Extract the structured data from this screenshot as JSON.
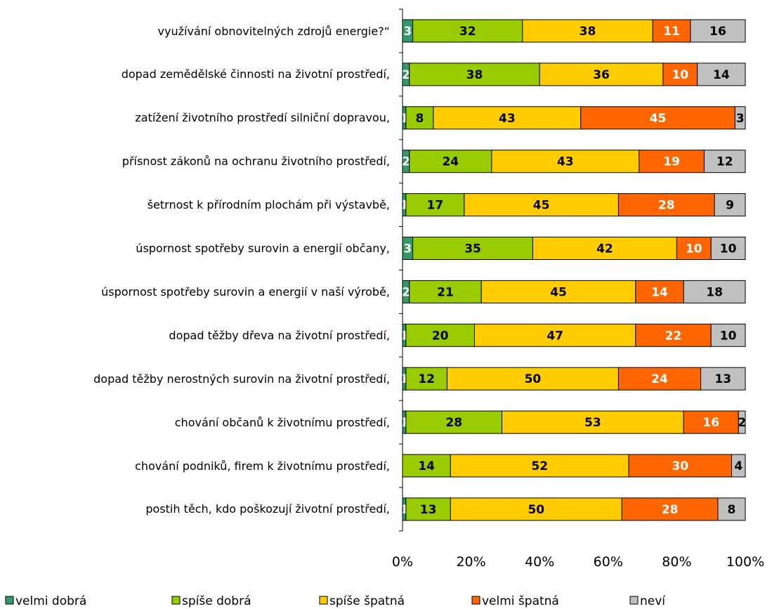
{
  "chart_data": {
    "type": "stacked-bar-horizontal",
    "categories": [
      "využívání obnovitelných zdrojů energie?“",
      "dopad zemědělské činnosti na životní prostředí,",
      "zatížení životního prostředí silniční dopravou,",
      "přísnost zákonů na ochranu životního prostředí,",
      "šetrnost k přírodním plochám při výstavbě,",
      "úspornost spotřeby surovin a energií občany,",
      "úspornost spotřeby surovin a energií v naší výrobě,",
      "dopad těžby dřeva na životní prostředí,",
      "dopad těžby nerostných surovin na životní prostředí,",
      "chování občanů k životnímu prostředí,",
      "chování podniků, firem k životnímu prostředí,",
      "postih těch, kdo poškozují životní prostředí,"
    ],
    "series": [
      {
        "name": "velmi dobrá",
        "color": "#339966",
        "label_color": "#ffffff",
        "values": [
          3,
          2,
          1,
          2,
          1,
          3,
          2,
          1,
          1,
          1,
          0,
          1
        ]
      },
      {
        "name": "spíše dobrá",
        "color": "#99cc00",
        "label_color": "#000000",
        "values": [
          32,
          38,
          8,
          24,
          17,
          35,
          21,
          20,
          12,
          28,
          14,
          13
        ]
      },
      {
        "name": "spíše špatná",
        "color": "#ffcc00",
        "label_color": "#000000",
        "values": [
          38,
          36,
          43,
          43,
          45,
          42,
          45,
          47,
          50,
          53,
          52,
          50
        ]
      },
      {
        "name": "velmi špatná",
        "color": "#ff6600",
        "label_color": "#ffffff",
        "values": [
          11,
          10,
          45,
          19,
          28,
          10,
          14,
          22,
          24,
          16,
          30,
          28
        ]
      },
      {
        "name": "neví",
        "color": "#c0c0c0",
        "label_color": "#000000",
        "values": [
          16,
          14,
          3,
          12,
          9,
          10,
          18,
          10,
          13,
          2,
          4,
          8
        ]
      }
    ],
    "xlim": [
      0,
      100
    ],
    "xticks": [
      {
        "value": 0,
        "label": "0%"
      },
      {
        "value": 20,
        "label": "20%"
      },
      {
        "value": 40,
        "label": "40%"
      },
      {
        "value": 60,
        "label": "60%"
      },
      {
        "value": 80,
        "label": "80%"
      },
      {
        "value": 100,
        "label": "100%"
      }
    ],
    "legend": "bottom"
  }
}
